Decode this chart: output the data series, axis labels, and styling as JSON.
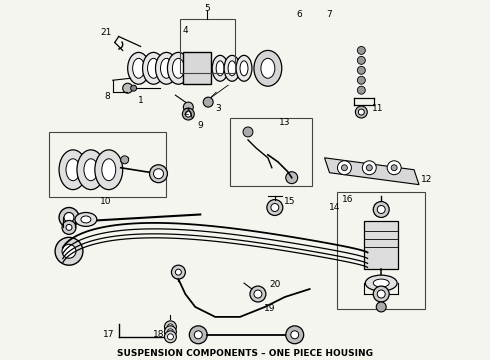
{
  "title": "SUSPENSION COMPONENTS – ONE PIECE HOUSING",
  "title_fontsize": 6.5,
  "bg_color": "#f5f5f0",
  "fig_width": 4.9,
  "fig_height": 3.6,
  "dpi": 100
}
